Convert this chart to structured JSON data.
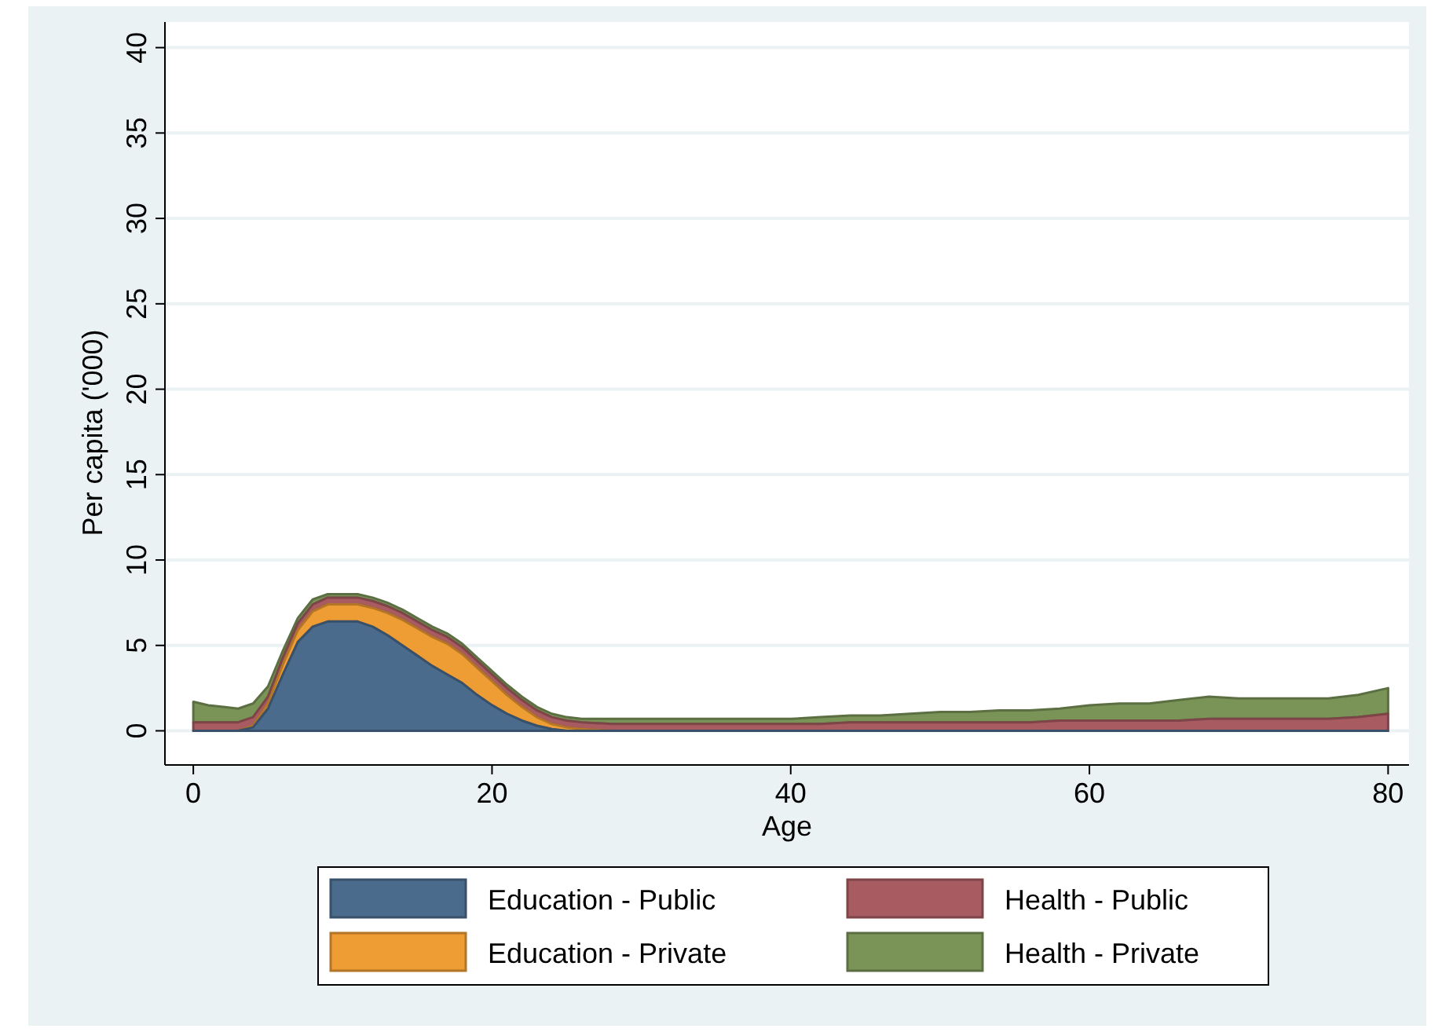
{
  "chart_data": {
    "type": "area",
    "stacked": true,
    "xlabel": "Age",
    "ylabel": "Per capita ('000)",
    "x": [
      0,
      1,
      2,
      3,
      4,
      5,
      6,
      7,
      8,
      9,
      10,
      11,
      12,
      13,
      14,
      15,
      16,
      17,
      18,
      19,
      20,
      21,
      22,
      23,
      24,
      25,
      26,
      28,
      30,
      32,
      34,
      36,
      38,
      40,
      42,
      44,
      46,
      48,
      50,
      52,
      54,
      56,
      58,
      60,
      62,
      64,
      66,
      68,
      70,
      72,
      74,
      76,
      78,
      80
    ],
    "series": [
      {
        "name": "Education - Public",
        "color": "#4a6b8c",
        "values": [
          0,
          0,
          0,
          0,
          0.2,
          1.3,
          3.3,
          5.2,
          6.1,
          6.4,
          6.4,
          6.4,
          6.1,
          5.6,
          5.0,
          4.4,
          3.8,
          3.3,
          2.8,
          2.1,
          1.5,
          1.0,
          0.6,
          0.3,
          0.1,
          0,
          0,
          0,
          0,
          0,
          0,
          0,
          0,
          0,
          0,
          0,
          0,
          0,
          0,
          0,
          0,
          0,
          0,
          0,
          0,
          0,
          0,
          0,
          0,
          0,
          0,
          0,
          0,
          0
        ]
      },
      {
        "name": "Education - Private",
        "color": "#ee9c34",
        "values": [
          0,
          0,
          0,
          0,
          0.1,
          0.3,
          0.6,
          0.7,
          0.9,
          1.0,
          1.0,
          1.0,
          1.1,
          1.3,
          1.5,
          1.6,
          1.7,
          1.8,
          1.7,
          1.6,
          1.4,
          1.1,
          0.8,
          0.5,
          0.3,
          0.2,
          0.1,
          0,
          0,
          0,
          0,
          0,
          0,
          0,
          0,
          0,
          0,
          0,
          0,
          0,
          0,
          0,
          0,
          0,
          0,
          0,
          0,
          0,
          0,
          0,
          0,
          0,
          0,
          0
        ]
      },
      {
        "name": "Health - Public",
        "color": "#a85c61",
        "values": [
          0.5,
          0.5,
          0.5,
          0.5,
          0.5,
          0.4,
          0.4,
          0.4,
          0.4,
          0.4,
          0.4,
          0.4,
          0.4,
          0.4,
          0.4,
          0.4,
          0.4,
          0.4,
          0.4,
          0.4,
          0.4,
          0.4,
          0.4,
          0.4,
          0.4,
          0.4,
          0.4,
          0.4,
          0.4,
          0.4,
          0.4,
          0.4,
          0.4,
          0.4,
          0.4,
          0.5,
          0.5,
          0.5,
          0.5,
          0.5,
          0.5,
          0.5,
          0.6,
          0.6,
          0.6,
          0.6,
          0.6,
          0.7,
          0.7,
          0.7,
          0.7,
          0.7,
          0.8,
          1.0
        ]
      },
      {
        "name": "Health - Private",
        "color": "#7a9458",
        "values": [
          1.2,
          1.0,
          0.9,
          0.8,
          0.8,
          0.6,
          0.4,
          0.3,
          0.3,
          0.2,
          0.2,
          0.2,
          0.2,
          0.2,
          0.2,
          0.2,
          0.2,
          0.2,
          0.2,
          0.2,
          0.2,
          0.2,
          0.2,
          0.2,
          0.2,
          0.2,
          0.2,
          0.3,
          0.3,
          0.3,
          0.3,
          0.3,
          0.3,
          0.3,
          0.4,
          0.4,
          0.4,
          0.5,
          0.6,
          0.6,
          0.7,
          0.7,
          0.7,
          0.9,
          1.0,
          1.0,
          1.2,
          1.3,
          1.2,
          1.2,
          1.2,
          1.2,
          1.3,
          1.5
        ]
      }
    ],
    "xlim": [
      -1.9,
      81.4
    ],
    "ylim": [
      -2,
      41.5
    ],
    "xticks": [
      0,
      20,
      40,
      60,
      80
    ],
    "yticks": [
      0,
      5,
      10,
      15,
      20,
      25,
      30,
      35,
      40
    ],
    "grid": "y",
    "legend": "bottom"
  }
}
